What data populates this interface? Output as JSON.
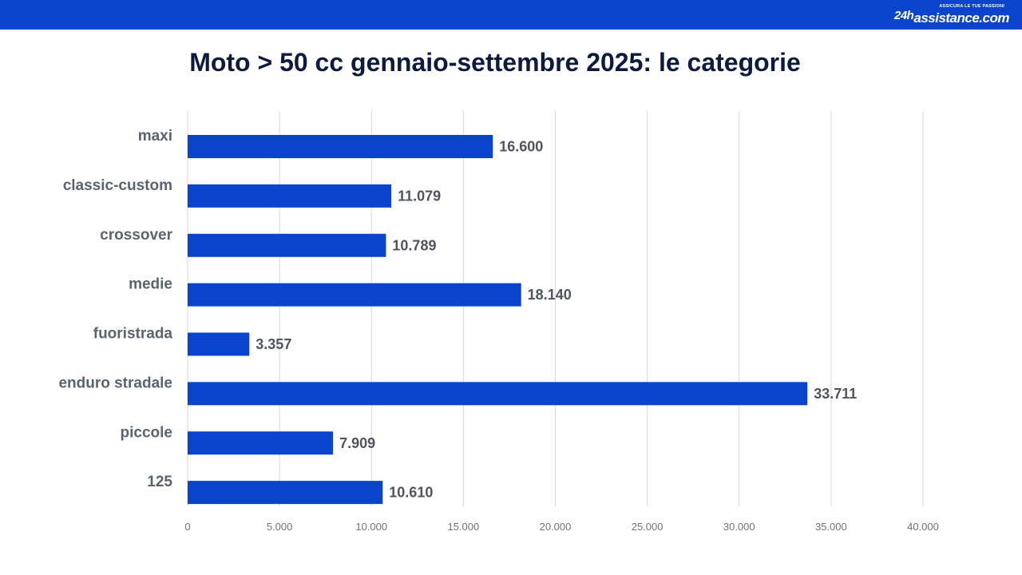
{
  "header": {
    "bar_color": "#0a43cc",
    "logo_brand_prefix": "24h",
    "logo_brand_main": "assistance.com",
    "logo_tagline": "ASSICURA LE TUE PASSIONI"
  },
  "chart_data": {
    "type": "bar",
    "orientation": "horizontal",
    "title": "Moto > 50 cc gennaio-settembre 2025: le categorie",
    "categories": [
      "maxi",
      "classic-custom",
      "crossover",
      "medie",
      "fuoristrada",
      "enduro stradale",
      "piccole",
      "125"
    ],
    "values": [
      16600,
      11079,
      10789,
      18140,
      3357,
      33711,
      7909,
      10610
    ],
    "value_labels": [
      "16.600",
      "11.079",
      "10.789",
      "18.140",
      "3.357",
      "33.711",
      "7.909",
      "10.610"
    ],
    "xlim": [
      0,
      40000
    ],
    "x_ticks": [
      0,
      5000,
      10000,
      15000,
      20000,
      25000,
      30000,
      35000,
      40000
    ],
    "x_tick_labels": [
      "0",
      "5.000",
      "10.000",
      "15.000",
      "20.000",
      "25.000",
      "30.000",
      "35.000",
      "40.000"
    ],
    "xlabel": "",
    "ylabel": "",
    "bar_color": "#0a43cc",
    "grid": "vertical",
    "legend": "none"
  }
}
